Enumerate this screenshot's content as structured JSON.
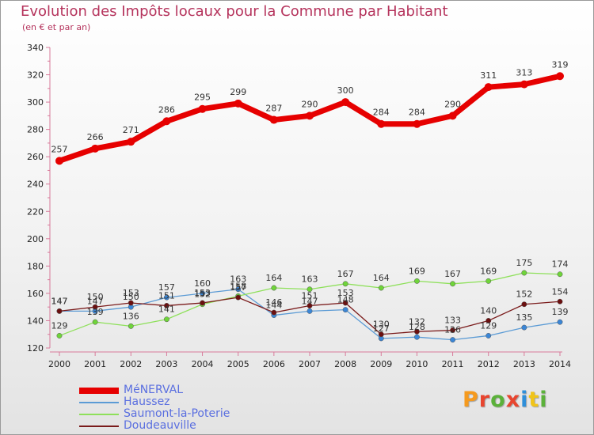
{
  "title": "Evolution des Impôts locaux pour la Commune par Habitant",
  "subtitle": "(en € et par an)",
  "logo": {
    "text": "Proxiti",
    "letters": [
      {
        "ch": "P",
        "color": "#f59a1e"
      },
      {
        "ch": "r",
        "color": "#e8452f"
      },
      {
        "ch": "o",
        "color": "#5bb13a"
      },
      {
        "ch": "x",
        "color": "#e8452f"
      },
      {
        "ch": "i",
        "color": "#2f8fd9"
      },
      {
        "ch": "t",
        "color": "#f0c419"
      },
      {
        "ch": "i",
        "color": "#5bb13a"
      }
    ]
  },
  "chart_data": {
    "type": "line",
    "title": "Evolution des Impôts locaux pour la Commune par Habitant",
    "ylim": [
      120,
      340
    ],
    "yticks": [
      120,
      140,
      160,
      180,
      200,
      220,
      240,
      260,
      280,
      300,
      320,
      340
    ],
    "x": [
      "2000",
      "2001",
      "2002",
      "2003",
      "2004",
      "2005",
      "2006",
      "2007",
      "2008",
      "2009",
      "2010",
      "2011",
      "2012",
      "2013",
      "2014"
    ],
    "grid": false,
    "legend_position": "bottom-left",
    "series": [
      {
        "name": "MéNERVAL",
        "color": "#e60000",
        "marker_color": "#e60000",
        "values": [
          257,
          266,
          271,
          286,
          295,
          299,
          287,
          290,
          300,
          284,
          284,
          290,
          311,
          313,
          319
        ]
      },
      {
        "name": "Haussez",
        "color": "#5b9bd5",
        "marker_color": "#3b86d6",
        "values": [
          147,
          147,
          150,
          157,
          160,
          163,
          144,
          147,
          148,
          127,
          128,
          126,
          129,
          135,
          139
        ]
      },
      {
        "name": "Saumont-la-Poterie",
        "color": "#8ee05a",
        "marker_color": "#6fd43a",
        "values": [
          129,
          139,
          136,
          141,
          152,
          158,
          164,
          163,
          167,
          164,
          169,
          167,
          169,
          175,
          174
        ]
      },
      {
        "name": "Doudeauville",
        "color": "#7a1b1b",
        "marker_color": "#6b0f0f",
        "values": [
          147,
          150,
          153,
          151,
          153,
          157,
          146,
          151,
          153,
          130,
          132,
          133,
          140,
          152,
          154
        ]
      }
    ]
  }
}
